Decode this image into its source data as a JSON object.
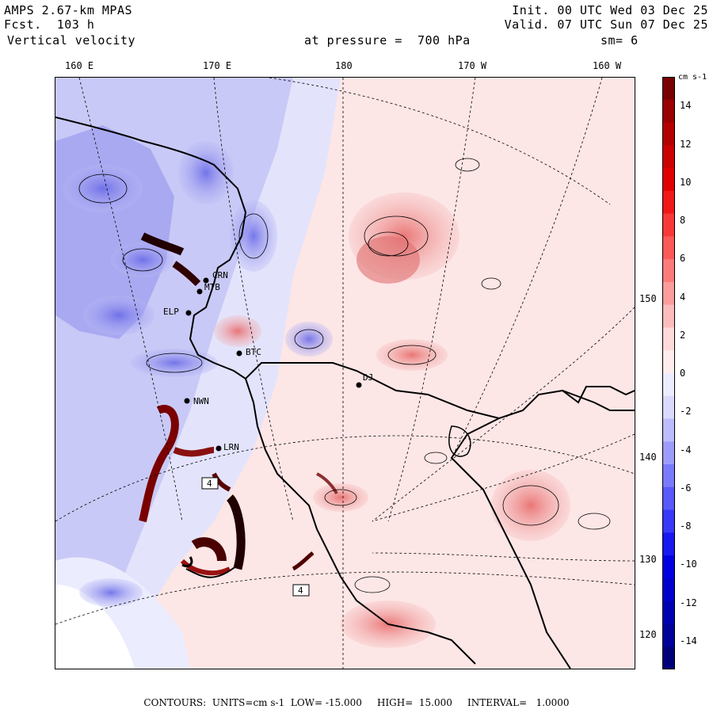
{
  "header": {
    "model": "AMPS 2.67-km MPAS",
    "forecast": "Fcst.  103 h",
    "variable": "Vertical velocity",
    "level": "at pressure =  700 hPa",
    "init": "Init. 00 UTC Wed 03 Dec 25",
    "valid": "Valid. 07 UTC Sun 07 Dec 25",
    "smoothing": "sm= 6"
  },
  "longitude_labels": [
    "160 E",
    "170 E",
    "180",
    "170 W",
    "160 W"
  ],
  "latitude_labels": [
    "150 W",
    "140 W",
    "130 W",
    "120 W"
  ],
  "stations": [
    "CRN",
    "MTB",
    "ELP",
    "BTC",
    "DJ",
    "NWN",
    "LRN",
    "4",
    "4"
  ],
  "colorbar": {
    "unit": "cm s-1",
    "ticks": [
      "14",
      "12",
      "10",
      "8",
      "6",
      "4",
      "2",
      "0",
      "-2",
      "-4",
      "-6",
      "-8",
      "-10",
      "-12",
      "-14"
    ],
    "colors": [
      "#7a0000",
      "#9a0000",
      "#b30000",
      "#cc0000",
      "#e00000",
      "#f01818",
      "#f83838",
      "#fc5858",
      "#fc7a7a",
      "#fc9c9c",
      "#fdbcbc",
      "#fedada",
      "#ffecec",
      "#ececff",
      "#dadafe",
      "#bcbcfd",
      "#9c9cfc",
      "#7a7afc",
      "#5858fc",
      "#3838f8",
      "#1818f0",
      "#0000e0",
      "#0000cc",
      "#0000b3",
      "#00009a",
      "#00007a"
    ]
  },
  "footer": "CONTOURS:  UNITS=cm s-1  LOW= -15.000     HIGH=  15.000     INTERVAL=   1.0000"
}
